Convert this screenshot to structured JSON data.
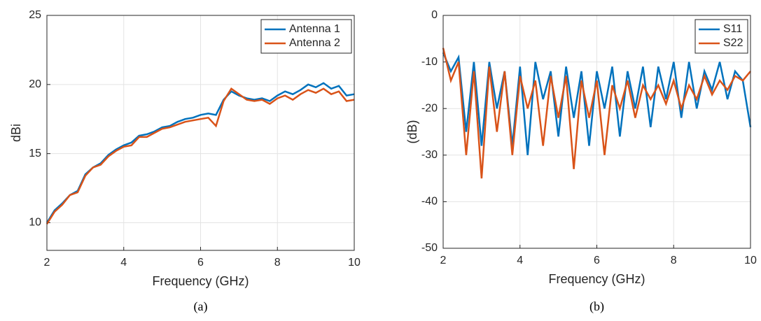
{
  "chart_data": [
    {
      "type": "line",
      "caption": "(a)",
      "xlabel": "Frequency (GHz)",
      "ylabel": "dBi",
      "x": [
        2,
        2.2,
        2.4,
        2.6,
        2.8,
        3,
        3.2,
        3.4,
        3.6,
        3.8,
        4,
        4.2,
        4.4,
        4.6,
        4.8,
        5,
        5.2,
        5.4,
        5.6,
        5.8,
        6,
        6.2,
        6.4,
        6.6,
        6.8,
        7,
        7.2,
        7.4,
        7.6,
        7.8,
        8,
        8.2,
        8.4,
        8.6,
        8.8,
        9,
        9.2,
        9.4,
        9.6,
        9.8,
        10
      ],
      "series": [
        {
          "name": "Antenna 1",
          "color": "#0072bd",
          "values": [
            10,
            10.9,
            11.4,
            12.0,
            12.3,
            13.5,
            14.0,
            14.3,
            14.9,
            15.3,
            15.6,
            15.8,
            16.3,
            16.4,
            16.6,
            16.9,
            17.0,
            17.3,
            17.5,
            17.6,
            17.8,
            17.9,
            17.8,
            18.9,
            19.5,
            19.2,
            19.0,
            18.9,
            19.0,
            18.8,
            19.2,
            19.5,
            19.3,
            19.6,
            20.0,
            19.8,
            20.1,
            19.7,
            19.9,
            19.2,
            19.3
          ]
        },
        {
          "name": "Antenna 2",
          "color": "#d95319",
          "values": [
            9.9,
            10.8,
            11.3,
            12.0,
            12.2,
            13.4,
            14.0,
            14.2,
            14.8,
            15.2,
            15.5,
            15.6,
            16.2,
            16.2,
            16.5,
            16.8,
            16.9,
            17.1,
            17.3,
            17.4,
            17.5,
            17.6,
            17.0,
            18.8,
            19.7,
            19.3,
            18.9,
            18.8,
            18.9,
            18.6,
            19.0,
            19.2,
            18.9,
            19.3,
            19.6,
            19.4,
            19.7,
            19.3,
            19.5,
            18.8,
            18.9
          ]
        }
      ],
      "xlim": [
        2,
        10
      ],
      "xticks": [
        2,
        4,
        6,
        8,
        10
      ],
      "ylim": [
        8,
        25
      ],
      "yticks": [
        10,
        15,
        20,
        25
      ],
      "grid": true,
      "legend": "northeast"
    },
    {
      "type": "line",
      "caption": "(b)",
      "xlabel": "Frequency (GHz)",
      "ylabel": "(dB)",
      "x": [
        2,
        2.2,
        2.4,
        2.6,
        2.8,
        3,
        3.2,
        3.4,
        3.6,
        3.8,
        4,
        4.2,
        4.4,
        4.6,
        4.8,
        5,
        5.2,
        5.4,
        5.6,
        5.8,
        6,
        6.2,
        6.4,
        6.6,
        6.8,
        7,
        7.2,
        7.4,
        7.6,
        7.8,
        8,
        8.2,
        8.4,
        8.6,
        8.8,
        9,
        9.2,
        9.4,
        9.6,
        9.8,
        10
      ],
      "series": [
        {
          "name": "S11",
          "color": "#0072bd",
          "values": [
            -8,
            -12,
            -9,
            -25,
            -10,
            -28,
            -10,
            -20,
            -12,
            -28,
            -11,
            -30,
            -10,
            -18,
            -12,
            -26,
            -11,
            -22,
            -12,
            -28,
            -12,
            -20,
            -11,
            -26,
            -12,
            -20,
            -11,
            -24,
            -11,
            -18,
            -10,
            -22,
            -10,
            -20,
            -12,
            -16,
            -10,
            -18,
            -12,
            -14,
            -24
          ]
        },
        {
          "name": "S22",
          "color": "#d95319",
          "values": [
            -7,
            -14,
            -10,
            -30,
            -12,
            -35,
            -11,
            -25,
            -12,
            -30,
            -13,
            -20,
            -14,
            -28,
            -13,
            -22,
            -13,
            -33,
            -14,
            -22,
            -14,
            -30,
            -15,
            -20,
            -14,
            -22,
            -15,
            -18,
            -15,
            -19,
            -14,
            -20,
            -15,
            -18,
            -13,
            -17,
            -14,
            -16,
            -13,
            -14,
            -12
          ]
        }
      ],
      "xlim": [
        2,
        10
      ],
      "xticks": [
        2,
        4,
        6,
        8,
        10
      ],
      "ylim": [
        -50,
        0
      ],
      "yticks": [
        -50,
        -40,
        -30,
        -20,
        -10,
        0
      ],
      "grid": true,
      "legend": "northeast"
    }
  ]
}
